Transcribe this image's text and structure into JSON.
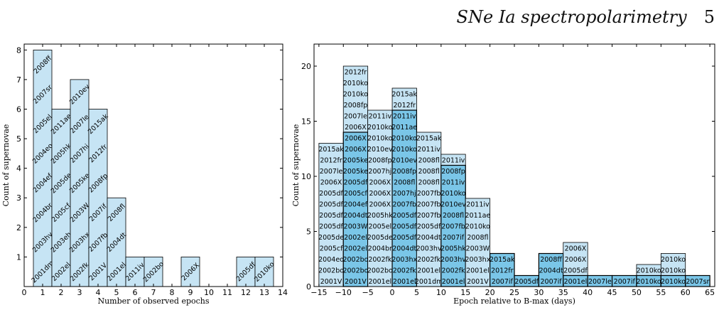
{
  "header": {
    "title": "SNe Ia spectropolarimetry",
    "page_number": "5"
  },
  "colors": {
    "light_bar": "#c6e4f4",
    "dark_bar": "#7ac6e8",
    "edge": "#000000"
  },
  "chart_data": [
    {
      "type": "bar",
      "subtype": "stacked-label-histogram",
      "xlabel": "Number of observed epochs",
      "ylabel": "Count of supernovae",
      "xlim": [
        0,
        14
      ],
      "ylim": [
        0,
        8.2
      ],
      "xticks": [
        0,
        1,
        2,
        3,
        4,
        5,
        6,
        7,
        8,
        9,
        10,
        11,
        12,
        13,
        14
      ],
      "yticks": [
        1,
        2,
        3,
        4,
        5,
        6,
        7,
        8
      ],
      "bin_width": 1,
      "bins": [
        {
          "center": 1,
          "count": 8,
          "labels": [
            "2001dm",
            "2003hv",
            "2004br",
            "2004ef",
            "2004eo",
            "2005el",
            "2007sr",
            "2008ff"
          ]
        },
        {
          "center": 2,
          "count": 6,
          "labels": [
            "2002el",
            "2003eh",
            "2005cf",
            "2005de",
            "2005hk",
            "2011ae"
          ]
        },
        {
          "center": 3,
          "count": 7,
          "labels": [
            "2002fk",
            "2003hx",
            "2003W",
            "2005ke",
            "2007hj",
            "2007le",
            "2010ev"
          ]
        },
        {
          "center": 4,
          "count": 6,
          "labels": [
            "2001V",
            "2007fb",
            "2007if",
            "2008fp",
            "2012fr",
            "2015ak"
          ]
        },
        {
          "center": 5,
          "count": 3,
          "labels": [
            "2001el",
            "2004dt",
            "2008fl"
          ]
        },
        {
          "center": 6,
          "count": 1,
          "labels": [
            "2011iv"
          ]
        },
        {
          "center": 7,
          "count": 1,
          "labels": [
            "2002bo"
          ]
        },
        {
          "center": 9,
          "count": 1,
          "labels": [
            "2006X"
          ]
        },
        {
          "center": 12,
          "count": 1,
          "labels": [
            "2005df"
          ]
        },
        {
          "center": 13,
          "count": 1,
          "labels": [
            "2010ko"
          ]
        }
      ]
    },
    {
      "type": "bar",
      "subtype": "stacked-label-histogram",
      "xlabel": "Epoch relative to B-max (days)",
      "ylabel": "Count of supernovae",
      "xlim": [
        -16,
        66
      ],
      "ylim": [
        0,
        22
      ],
      "xticks": [
        -15,
        -10,
        -5,
        0,
        5,
        10,
        15,
        20,
        25,
        30,
        35,
        40,
        45,
        50,
        55,
        60,
        65
      ],
      "yticks": [
        0,
        5,
        10,
        15,
        20
      ],
      "bin_width": 5,
      "bins": [
        {
          "start": -15,
          "dark": 0,
          "labels": [
            "2001V",
            "2002bo",
            "2004eo",
            "2005cf",
            "2005de",
            "2005df",
            "2005df",
            "2005df",
            "2005df",
            "2006X",
            "2007le",
            "2012fr",
            "2015ak"
          ]
        },
        {
          "start": -10,
          "dark": 14,
          "labels": [
            "2001V",
            "2002bo",
            "2002bo",
            "2002el",
            "2002el",
            "2003W",
            "2004dt",
            "2004ef",
            "2005cf",
            "2005df",
            "2005ke",
            "2005ke",
            "2006X",
            "2006X",
            "2006X",
            "2007le",
            "2008fp",
            "2010ko",
            "2010ko",
            "2012fr"
          ]
        },
        {
          "start": -5,
          "dark": 0,
          "labels": [
            "2001el",
            "2002bo",
            "2002fk",
            "2004br",
            "2005de",
            "2005el",
            "2005hk",
            "2006X",
            "2006X",
            "2006X",
            "2007hj",
            "2008fp",
            "2010ev",
            "2010ko",
            "2010ko",
            "2011iv"
          ]
        },
        {
          "start": 0,
          "dark": 16,
          "labels": [
            "2001el",
            "2002fk",
            "2003hx",
            "2004dt",
            "2005df",
            "2005df",
            "2005df",
            "2007fb",
            "2007hj",
            "2008fl",
            "2008fp",
            "2010ev",
            "2010ko",
            "2010ko",
            "2011ae",
            "2011iv",
            "2012fr",
            "2015ak"
          ]
        },
        {
          "start": 5,
          "dark": 0,
          "labels": [
            "2001dm",
            "2001el",
            "2002fk",
            "2003hv",
            "2004dt",
            "2005df",
            "2007fb",
            "2007fb",
            "2007fb",
            "2008fl",
            "2008fl",
            "2008fl",
            "2011iv",
            "2015ak"
          ]
        },
        {
          "start": 10,
          "dark": 11,
          "labels": [
            "2001el",
            "2002fk",
            "2003hv",
            "2005hk",
            "2007if",
            "2007fb",
            "2008fl",
            "2010ev",
            "2010ko",
            "2011iv",
            "2008fp",
            "2011iv"
          ]
        },
        {
          "start": 15,
          "dark": 0,
          "labels": [
            "2001V",
            "2001el",
            "2003hx",
            "2003W",
            "2008fl",
            "2010ko",
            "2011ae",
            "2011iv"
          ]
        },
        {
          "start": 20,
          "dark": 3,
          "labels": [
            "2007if",
            "2012fr",
            "2015ak"
          ]
        },
        {
          "start": 25,
          "dark": 1,
          "labels": [
            "2005df"
          ]
        },
        {
          "start": 30,
          "dark": 3,
          "labels": [
            "2007if",
            "2004dt",
            "2008ff"
          ]
        },
        {
          "start": 35,
          "dark": 1,
          "labels": [
            "2001el",
            "2005df",
            "2006X",
            "2006X"
          ]
        },
        {
          "start": 40,
          "dark": 1,
          "labels": [
            "2007le"
          ]
        },
        {
          "start": 45,
          "dark": 1,
          "labels": [
            "2007if"
          ]
        },
        {
          "start": 50,
          "dark": 1,
          "labels": [
            "2010ko",
            "2010ko"
          ]
        },
        {
          "start": 55,
          "dark": 1,
          "labels": [
            "2010ko",
            "2010ko",
            "2010ko"
          ]
        },
        {
          "start": 60,
          "dark": 1,
          "labels": [
            "2007sr"
          ]
        }
      ]
    }
  ]
}
